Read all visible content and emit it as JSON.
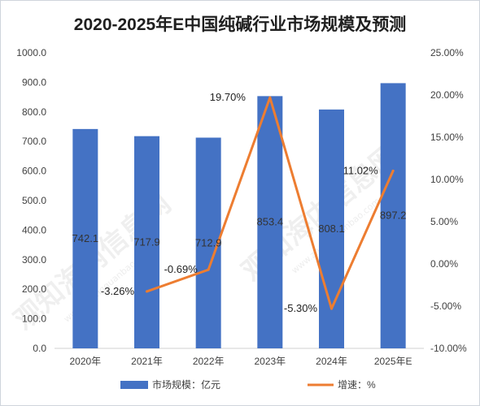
{
  "chart_data": {
    "type": "bar",
    "title": "2020-2025年E中国纯碱行业市场规模及预测",
    "categories": [
      "2020年",
      "2021年",
      "2022年",
      "2023年",
      "2024年",
      "2025年E"
    ],
    "series": [
      {
        "name": "市场规模：亿元",
        "type": "bar",
        "axis": "left",
        "values": [
          742.1,
          717.9,
          712.9,
          853.4,
          808.1,
          897.2
        ],
        "labels": [
          "742.1",
          "717.9",
          "712.9",
          "853.4",
          "808.1",
          "897.2"
        ]
      },
      {
        "name": "增速：%",
        "type": "line",
        "axis": "right",
        "values": [
          null,
          -3.26,
          -0.69,
          19.7,
          -5.3,
          11.02
        ],
        "labels": [
          "",
          "-3.26%",
          "-0.69%",
          "19.70%",
          "-5.30%",
          "11.02%"
        ]
      }
    ],
    "y_left": {
      "ylim": [
        0,
        1000
      ],
      "ticks": [
        0,
        100,
        200,
        300,
        400,
        500,
        600,
        700,
        800,
        900,
        1000
      ],
      "tick_labels": [
        "0.0",
        "100.0",
        "200.0",
        "300.0",
        "400.0",
        "500.0",
        "600.0",
        "700.0",
        "800.0",
        "900.0",
        "1000.0"
      ]
    },
    "y_right": {
      "ylim": [
        -10,
        25
      ],
      "ticks": [
        -10,
        -5,
        0,
        5,
        10,
        15,
        20,
        25
      ],
      "tick_labels": [
        "-10.00%",
        "-5.00%",
        "0.00%",
        "5.00%",
        "10.00%",
        "15.00%",
        "20.00%",
        "25.00%"
      ]
    },
    "grid": false,
    "legend": "bottom",
    "colors": {
      "bar": "#4472c4",
      "line": "#ed7d31",
      "border": "#cfd5dc"
    }
  },
  "watermark": {
    "text": "观知海内信息网",
    "subtext": "www.zhongguanbao.com"
  }
}
